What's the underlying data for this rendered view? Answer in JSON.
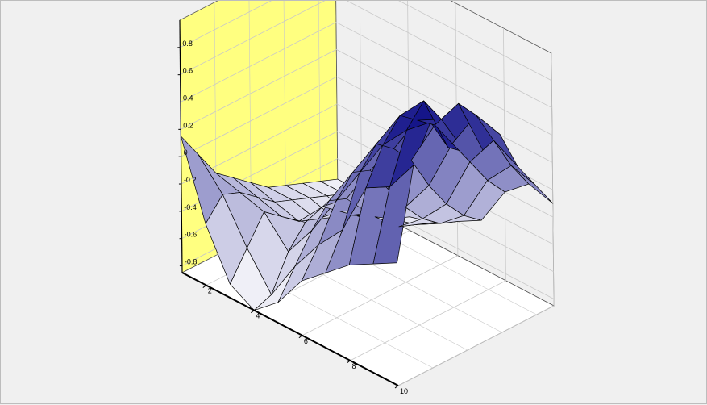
{
  "chart_data": {
    "type": "surface3d",
    "title": "",
    "xlabel": "",
    "ylabel": "",
    "zlabel": "",
    "x_ticks": [
      "2",
      "4",
      "6",
      "8",
      "10"
    ],
    "z_ticks": [
      "0.8",
      "0.6",
      "0.4",
      "0.2",
      "0",
      "-0.2",
      "-0.4",
      "-0.6",
      "-0.8"
    ],
    "xlim": [
      1,
      10
    ],
    "ylim": [
      1,
      10
    ],
    "zlim": [
      -0.85,
      1.0
    ],
    "grid": true,
    "colors": {
      "side_wall": "#ffff80",
      "back_wall": "#f0f0f0",
      "floor": "#ffffff",
      "surface_high": "#00007f",
      "surface_low": "#ffffff",
      "grid": "#c8c8c8"
    },
    "surface_z": [
      [
        0.15,
        -0.05,
        -0.25,
        -0.35,
        -0.45,
        -0.55,
        -0.6,
        -0.65,
        -0.7,
        -0.75
      ],
      [
        -0.4,
        -0.25,
        -0.3,
        -0.4,
        -0.5,
        -0.55,
        -0.6,
        -0.65,
        -0.7,
        -0.75
      ],
      [
        -0.75,
        -0.55,
        -0.35,
        -0.45,
        -0.55,
        -0.6,
        -0.65,
        -0.7,
        -0.75,
        -0.8
      ],
      [
        -0.85,
        -0.8,
        -0.55,
        -0.4,
        -0.35,
        -0.45,
        -0.55,
        -0.62,
        -0.7,
        -0.75
      ],
      [
        -0.7,
        -0.5,
        -0.3,
        -0.15,
        -0.2,
        -0.35,
        -0.5,
        -0.6,
        -0.65,
        -0.7
      ],
      [
        -0.45,
        -0.25,
        0.0,
        0.15,
        0.1,
        -0.1,
        -0.3,
        -0.45,
        -0.55,
        -0.6
      ],
      [
        -0.3,
        -0.05,
        0.3,
        0.45,
        0.35,
        0.2,
        -0.05,
        -0.25,
        -0.4,
        -0.5
      ],
      [
        -0.15,
        0.35,
        0.6,
        0.75,
        0.65,
        0.55,
        0.35,
        0.15,
        -0.05,
        -0.2
      ],
      [
        -0.05,
        0.45,
        0.8,
        0.95,
        0.75,
        0.8,
        0.65,
        0.4,
        0.15,
        -0.05
      ],
      [
        0.05,
        0.7,
        0.95,
        0.7,
        0.6,
        0.55,
        0.6,
        0.3,
        0.1,
        -0.1
      ]
    ]
  }
}
